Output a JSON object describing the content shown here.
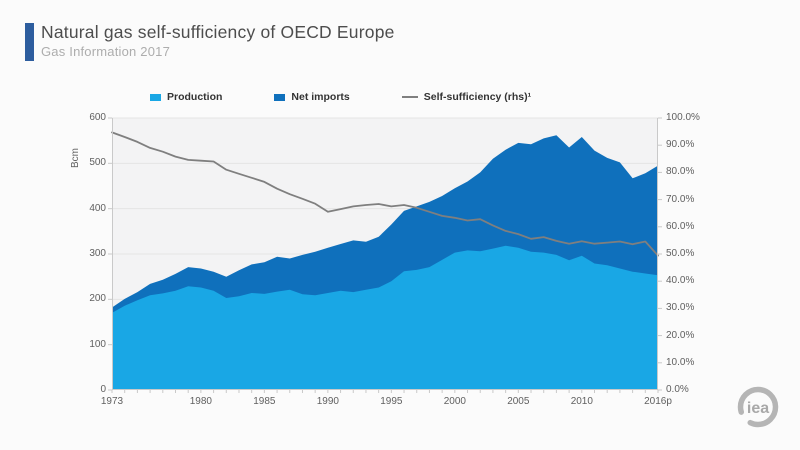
{
  "header": {
    "title": "Natural gas self-sufficiency of OECD Europe",
    "subtitle": "Gas Information 2017"
  },
  "colors": {
    "accent_bar": "#2d5d9e",
    "production": "#19a7e5",
    "net_imports": "#0f70bc",
    "self_sufficiency_line": "#7f7f7f",
    "plot_background": "#f3f3f4",
    "gridline": "#e4e4e4",
    "axis": "#c9c9c9",
    "logo_gray": "#b5b5b5"
  },
  "chart_data": {
    "type": "area",
    "stacked": true,
    "grid": true,
    "legend_position": "top",
    "x": [
      1973,
      1974,
      1975,
      1976,
      1977,
      1978,
      1979,
      1980,
      1981,
      1982,
      1983,
      1984,
      1985,
      1986,
      1987,
      1988,
      1989,
      1990,
      1991,
      1992,
      1993,
      1994,
      1995,
      1996,
      1997,
      1998,
      1999,
      2000,
      2001,
      2002,
      2003,
      2004,
      2005,
      2006,
      2007,
      2008,
      2009,
      2010,
      2011,
      2012,
      2013,
      2014,
      2015,
      2016
    ],
    "series": [
      {
        "name": "Production",
        "color": "#19a7e5",
        "values": [
          170,
          186,
          198,
          209,
          213,
          219,
          229,
          226,
          219,
          203,
          207,
          214,
          212,
          217,
          221,
          211,
          209,
          214,
          219,
          216,
          221,
          226,
          240,
          262,
          265,
          271,
          287,
          303,
          308,
          306,
          312,
          318,
          314,
          305,
          303,
          298,
          286,
          296,
          279,
          275,
          268,
          261,
          257,
          253
        ]
      },
      {
        "name": "Net imports",
        "color": "#0f70bc",
        "values": [
          12,
          15,
          18,
          25,
          30,
          37,
          42,
          42,
          42,
          47,
          57,
          63,
          70,
          77,
          69,
          87,
          96,
          100,
          103,
          114,
          106,
          112,
          125,
          133,
          140,
          144,
          141,
          142,
          152,
          174,
          198,
          212,
          231,
          237,
          252,
          264,
          249,
          262,
          249,
          237,
          234,
          206,
          221,
          242
        ]
      }
    ],
    "line_series": {
      "name": "Self-sufficiency (rhs)¹",
      "axis": "right",
      "color": "#7f7f7f",
      "values": [
        94.7,
        93.0,
        91.2,
        89.0,
        87.6,
        85.8,
        84.6,
        84.3,
        84.0,
        81.0,
        79.5,
        78.0,
        76.5,
        74.0,
        72.0,
        70.3,
        68.5,
        65.5,
        66.5,
        67.5,
        68.0,
        68.4,
        67.5,
        68.0,
        67.0,
        65.5,
        64.0,
        63.3,
        62.3,
        62.8,
        60.5,
        58.5,
        57.3,
        55.6,
        56.2,
        54.8,
        53.8,
        54.7,
        53.8,
        54.2,
        54.6,
        53.6,
        54.6,
        49.4
      ]
    },
    "left_axis": {
      "label": "Bcm",
      "min": 0,
      "max": 600,
      "step": 100
    },
    "right_axis": {
      "min": 0,
      "max": 100,
      "step": 10,
      "decimals": 1,
      "suffix": "%"
    },
    "x_ticks": [
      {
        "value": 1973,
        "label": "1973"
      },
      {
        "value": 1980,
        "label": "1980"
      },
      {
        "value": 1985,
        "label": "1985"
      },
      {
        "value": 1990,
        "label": "1990"
      },
      {
        "value": 1995,
        "label": "1995"
      },
      {
        "value": 2000,
        "label": "2000"
      },
      {
        "value": 2005,
        "label": "2005"
      },
      {
        "value": 2010,
        "label": "2010"
      },
      {
        "value": 2016,
        "label": "2016p"
      }
    ]
  },
  "logo": {
    "text": "iea"
  }
}
